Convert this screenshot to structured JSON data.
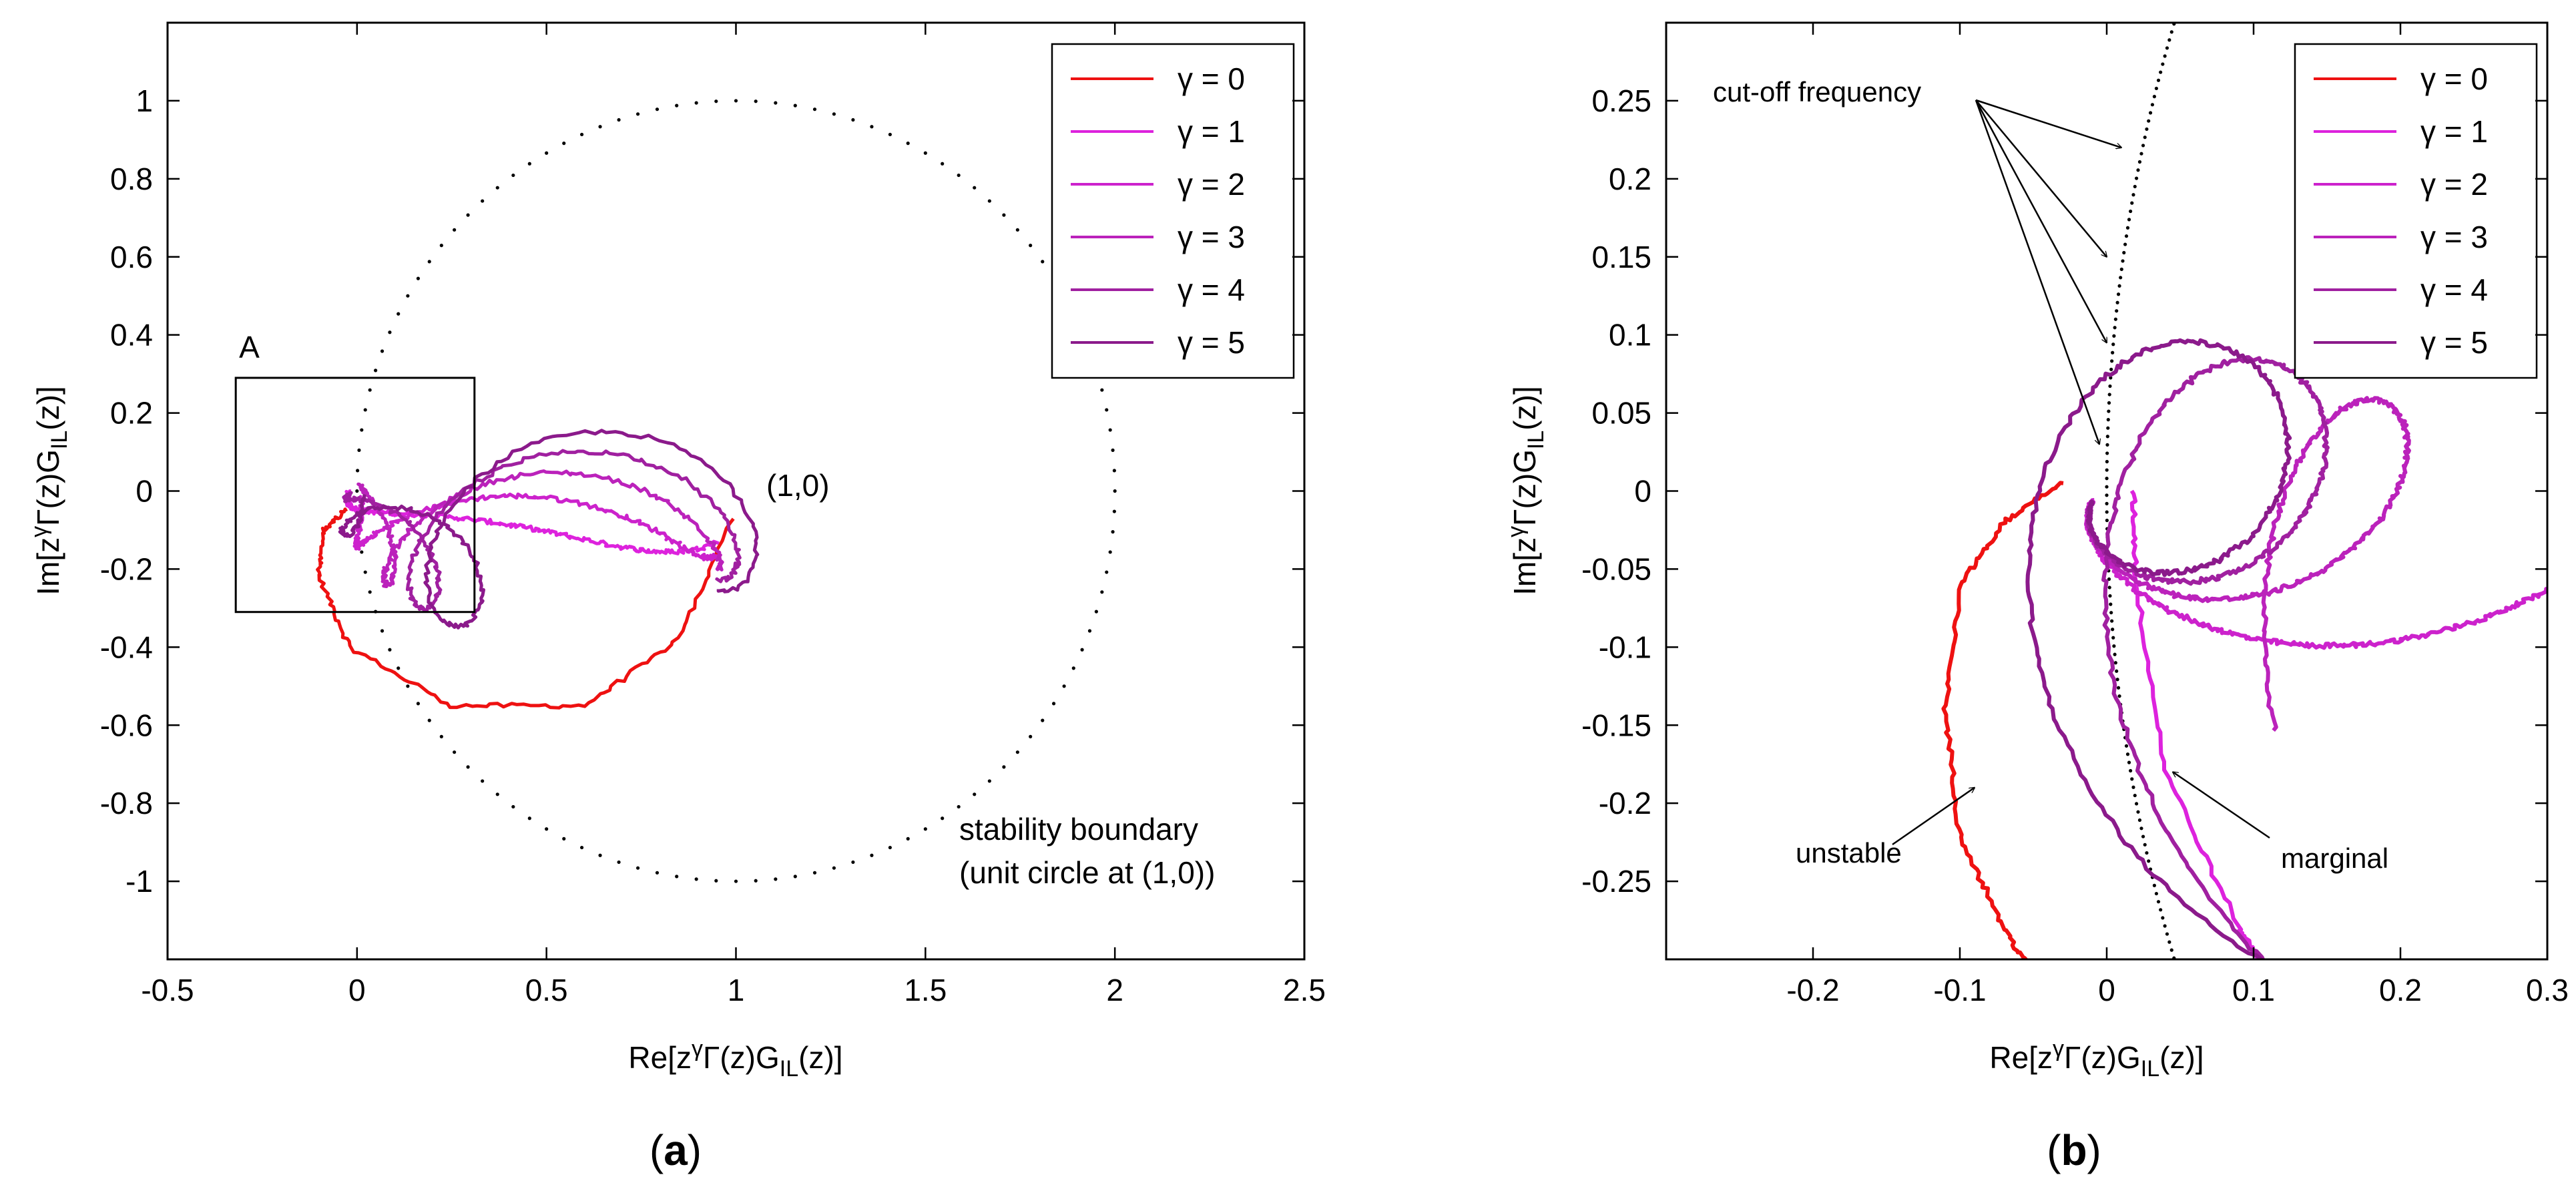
{
  "chart_data": [
    {
      "type": "line",
      "panel_label": "a",
      "xlim": [
        -0.5,
        2.5
      ],
      "ylim": [
        -1.2,
        1.2
      ],
      "xticks": [
        -0.5,
        0,
        0.5,
        1,
        1.5,
        2,
        2.5
      ],
      "xtick_labels": [
        "-0.5",
        "0",
        "0.5",
        "1",
        "1.5",
        "2",
        "2.5"
      ],
      "yticks": [
        1,
        0.8,
        0.6,
        0.4,
        0.2,
        0,
        -0.2,
        -0.4,
        -0.6,
        -0.8,
        -1
      ],
      "ytick_labels": [
        "1",
        "0.8",
        "0.6",
        "0.4",
        "0.2",
        "0",
        "-0.2",
        "-0.4",
        "-0.6",
        "-0.8",
        "-1"
      ],
      "xlabel": {
        "pre": "Re[z",
        "sup": "γ",
        "mid": "Γ(z)G",
        "sub": "IL",
        "post": "(z)]"
      },
      "ylabel": {
        "pre": "Im[z",
        "sup": "γ",
        "mid": "Γ(z)G",
        "sub": "IL",
        "post": "(z)]"
      },
      "grid": false,
      "legend": "top-right",
      "series": [
        {
          "name": "γ = 0",
          "gamma": 0,
          "color": "#ee1111"
        },
        {
          "name": "γ = 1",
          "gamma": 1,
          "color": "#dd22dd"
        },
        {
          "name": "γ = 2",
          "gamma": 2,
          "color": "#cc22cc"
        },
        {
          "name": "γ = 3",
          "gamma": 3,
          "color": "#bb22bb"
        },
        {
          "name": "γ = 4",
          "gamma": 4,
          "color": "#a020a0"
        },
        {
          "name": "γ = 5",
          "gamma": 5,
          "color": "#8b1a8b"
        }
      ],
      "stability_boundary": {
        "center": [
          1,
          0
        ],
        "radius": 1
      },
      "zoom_box": {
        "label": "A",
        "x": [
          -0.32,
          0.31
        ],
        "y": [
          -0.31,
          0.29
        ]
      },
      "annotations": {
        "point_label": "(1,0)",
        "boundary_line1": "stability boundary",
        "boundary_line2": "(unit circle at (1,0))"
      }
    },
    {
      "type": "line",
      "panel_label": "b",
      "xlim": [
        -0.3,
        0.3
      ],
      "ylim": [
        -0.3,
        0.3
      ],
      "xticks": [
        -0.2,
        -0.1,
        0,
        0.1,
        0.2,
        0.3
      ],
      "xtick_labels": [
        "-0.2",
        "-0.1",
        "0",
        "0.1",
        "0.2",
        "0.3"
      ],
      "yticks": [
        0.25,
        0.2,
        0.15,
        0.1,
        0.05,
        0,
        -0.05,
        -0.1,
        -0.15,
        -0.2,
        -0.25
      ],
      "ytick_labels": [
        "0.25",
        "0.2",
        "0.15",
        "0.1",
        "0.05",
        "0",
        "-0.05",
        "-0.1",
        "-0.15",
        "-0.2",
        "-0.25"
      ],
      "xlabel": {
        "pre": "Re[z",
        "sup": "γ",
        "mid": "Γ(z)G",
        "sub": "IL",
        "post": "(z)]"
      },
      "ylabel": {
        "pre": "Im[z",
        "sup": "γ",
        "mid": "Γ(z)G",
        "sub": "IL",
        "post": "(z)]"
      },
      "grid": false,
      "legend": "top-right",
      "annotations": {
        "cutoff": "cut-off frequency",
        "unstable": "unstable",
        "marginal": "marginal"
      }
    }
  ]
}
